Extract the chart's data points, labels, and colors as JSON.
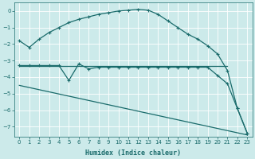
{
  "xlabel": "Humidex (Indice chaleur)",
  "bg_color": "#cceaea",
  "grid_color": "#ffffff",
  "line_color": "#1a6b6b",
  "xlim": [
    -0.5,
    23.5
  ],
  "ylim": [
    -7.6,
    0.5
  ],
  "yticks": [
    0,
    -1,
    -2,
    -3,
    -4,
    -5,
    -6,
    -7
  ],
  "xticks": [
    0,
    1,
    2,
    3,
    4,
    5,
    6,
    7,
    8,
    9,
    10,
    11,
    12,
    13,
    14,
    15,
    16,
    17,
    18,
    19,
    20,
    21,
    22,
    23
  ],
  "curve1_x": [
    0,
    1,
    2,
    3,
    4,
    5,
    6,
    7,
    8,
    9,
    10,
    11,
    12,
    13,
    14,
    15,
    16,
    17,
    18,
    19,
    20,
    21,
    22,
    23
  ],
  "curve1_y": [
    -1.8,
    -2.2,
    -1.7,
    -1.3,
    -1.0,
    -0.7,
    -0.5,
    -0.35,
    -0.2,
    -0.1,
    0.0,
    0.05,
    0.1,
    0.05,
    -0.2,
    -0.6,
    -1.0,
    -1.4,
    -1.7,
    -2.1,
    -2.6,
    -3.6,
    -5.9,
    -7.4
  ],
  "curve2_x": [
    0,
    1,
    2,
    3,
    4,
    5,
    6,
    7,
    8,
    9,
    10,
    11,
    12,
    13,
    14,
    15,
    16,
    17,
    18,
    19,
    20,
    21,
    22,
    23
  ],
  "curve2_y": [
    -3.3,
    -3.3,
    -3.3,
    -3.3,
    -3.3,
    -4.2,
    -3.2,
    -3.5,
    -3.4,
    -3.4,
    -3.4,
    -3.4,
    -3.4,
    -3.4,
    -3.4,
    -3.4,
    -3.4,
    -3.4,
    -3.4,
    -3.4,
    -3.9,
    -4.4,
    -5.9,
    -7.4
  ],
  "flat_line_x": [
    0,
    21
  ],
  "flat_line_y": [
    -3.35,
    -3.35
  ],
  "diag_line_x": [
    0,
    23
  ],
  "diag_line_y": [
    -4.5,
    -7.5
  ],
  "line_width": 0.9,
  "marker_size": 3,
  "tick_fontsize": 5,
  "xlabel_fontsize": 6
}
